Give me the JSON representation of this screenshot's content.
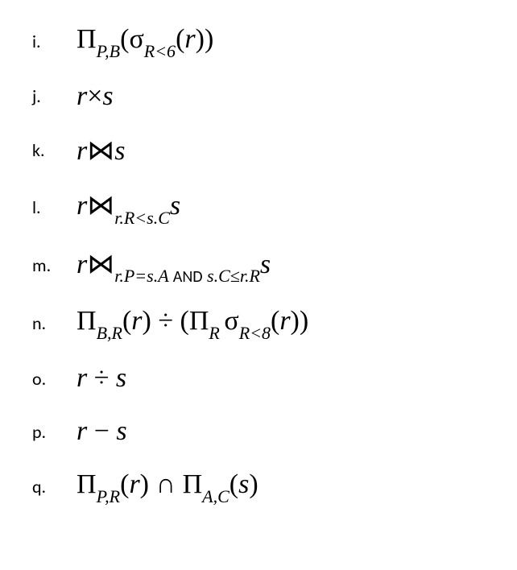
{
  "items": [
    {
      "label": "i.",
      "html": "<span class='op'>&Pi;</span><span class='sub'>P,B</span><span class='paren'>(</span><span class='op'>&sigma;</span><span class='sub'>R&lt;6</span><span class='paren'>(</span>r<span class='paren'>))</span>"
    },
    {
      "label": "j.",
      "html": "r<span class='op'>&times;</span>s"
    },
    {
      "label": "k.",
      "html": "r<span class='op'>&bowtie;</span>s"
    },
    {
      "label": "l.",
      "html": "r<span class='op'>&bowtie;</span><span class='sub'>r.R&lt;s.C</span>s"
    },
    {
      "label": "m.",
      "html": "r<span class='op'>&bowtie;</span><span class='sub'>r.P=s.A <span class='txt'>AND</span> s.C&le;r.R</span>s"
    },
    {
      "label": "n.",
      "html": "<span class='op'>&Pi;</span><span class='sub'>B,R</span><span class='paren'>(</span>r<span class='paren'>)</span> <span class='op'>&divide;</span> <span class='paren'>(</span><span class='op'>&Pi;</span><span class='sub'>R&nbsp;</span><span class='op'>&sigma;</span><span class='sub'>R&lt;8</span><span class='paren'>(</span>r<span class='paren'>))</span>"
    },
    {
      "label": "o.",
      "html": "r <span class='op'>&divide;</span> s"
    },
    {
      "label": "p.",
      "html": "r <span class='op'>&minus;</span> s"
    },
    {
      "label": "q.",
      "html": "<span class='op'>&Pi;</span><span class='sub'>P,R</span><span class='paren'>(</span>r<span class='paren'>)</span> <span class='op'>&cap;</span>&nbsp;<span class='op'>&Pi;</span><span class='sub'>A,C</span><span class='paren'>(</span>s<span class='paren'>)</span>"
    }
  ]
}
